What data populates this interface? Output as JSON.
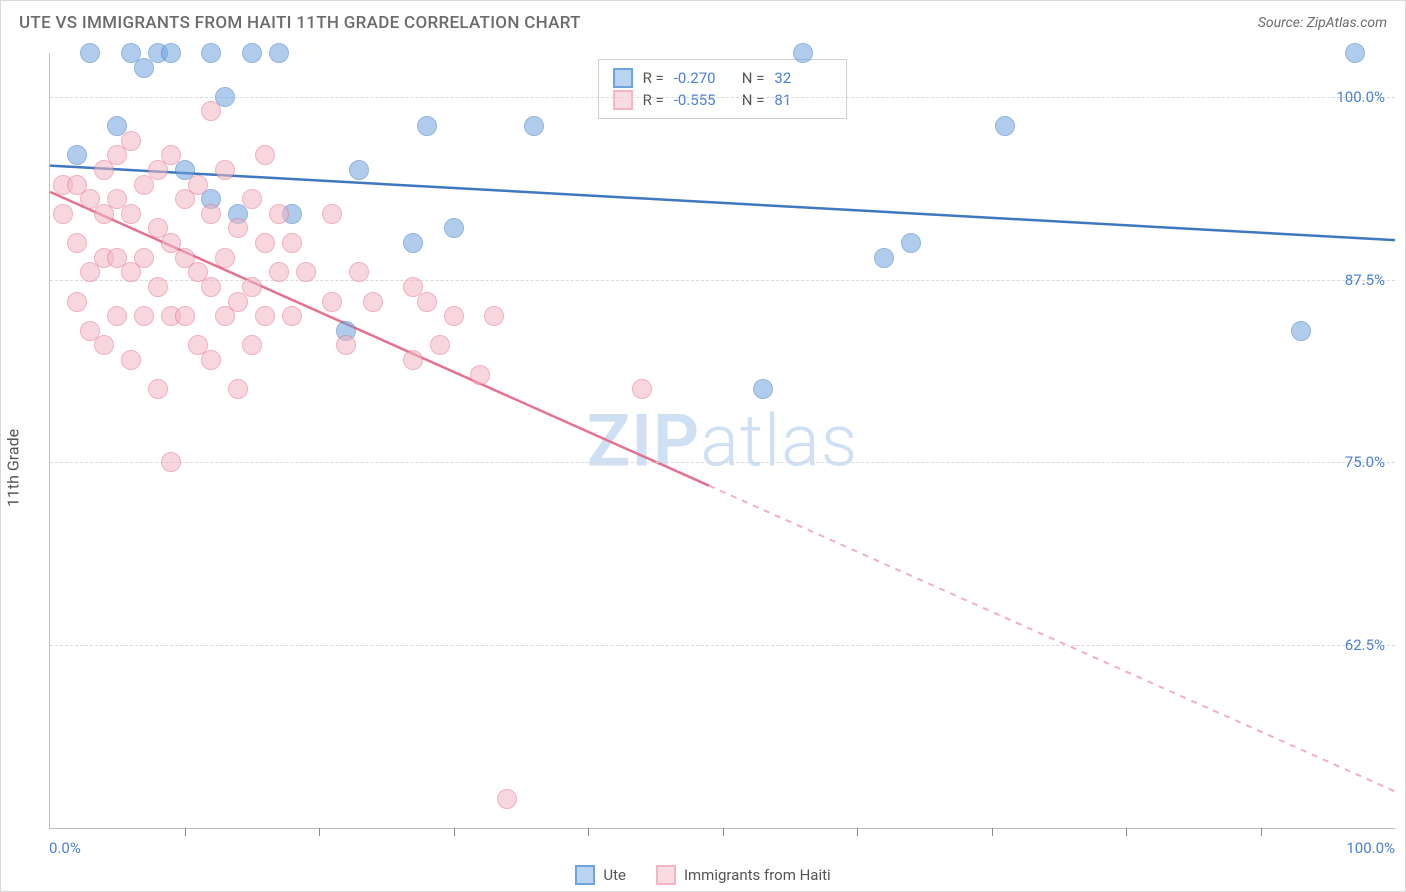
{
  "header": {
    "title": "UTE VS IMMIGRANTS FROM HAITI 11TH GRADE CORRELATION CHART",
    "source": "Source: ZipAtlas.com"
  },
  "chart": {
    "type": "scatter",
    "ylabel": "11th Grade",
    "xlim": [
      0,
      100
    ],
    "ylim": [
      50,
      103
    ],
    "xtick_step": 10,
    "yticks": [
      62.5,
      75.0,
      87.5,
      100.0
    ],
    "ytick_labels": [
      "62.5%",
      "75.0%",
      "87.5%",
      "100.0%"
    ],
    "xlabel_min": "0.0%",
    "xlabel_max": "100.0%",
    "grid_color": "#d9d9d9",
    "background": "#ffffff",
    "watermark": "ZIPatlas",
    "marker_radius": 10,
    "marker_opacity": 0.55,
    "series": [
      {
        "name": "Ute",
        "color": "#6fa3e0",
        "stroke": "#3f78c0",
        "R": "-0.270",
        "N": "32",
        "trend": {
          "x1": 0,
          "y1": 95.3,
          "x2": 100,
          "y2": 90.2,
          "solid_until": 100
        },
        "points": [
          [
            2,
            96
          ],
          [
            3,
            103
          ],
          [
            5,
            98
          ],
          [
            6,
            103
          ],
          [
            7,
            102
          ],
          [
            8,
            103
          ],
          [
            9,
            103
          ],
          [
            10,
            95
          ],
          [
            12,
            93
          ],
          [
            12,
            103
          ],
          [
            13,
            100
          ],
          [
            14,
            92
          ],
          [
            15,
            103
          ],
          [
            17,
            103
          ],
          [
            18,
            92
          ],
          [
            22,
            84
          ],
          [
            23,
            95
          ],
          [
            27,
            90
          ],
          [
            28,
            98
          ],
          [
            30,
            91
          ],
          [
            36,
            98
          ],
          [
            53,
            80
          ],
          [
            56,
            103
          ],
          [
            62,
            89
          ],
          [
            64,
            90
          ],
          [
            71,
            98
          ],
          [
            93,
            84
          ],
          [
            97,
            103
          ]
        ]
      },
      {
        "name": "Immigrants from Haiti",
        "color": "#f2b6c2",
        "stroke": "#e6718f",
        "R": "-0.555",
        "N": "81",
        "trend": {
          "x1": 0,
          "y1": 93.5,
          "x2": 100,
          "y2": 52.5,
          "solid_until": 49
        },
        "points": [
          [
            1,
            94
          ],
          [
            1,
            92
          ],
          [
            2,
            94
          ],
          [
            2,
            90
          ],
          [
            2,
            86
          ],
          [
            3,
            93
          ],
          [
            3,
            88
          ],
          [
            3,
            84
          ],
          [
            4,
            95
          ],
          [
            4,
            92
          ],
          [
            4,
            89
          ],
          [
            4,
            83
          ],
          [
            5,
            96
          ],
          [
            5,
            93
          ],
          [
            5,
            89
          ],
          [
            5,
            85
          ],
          [
            6,
            97
          ],
          [
            6,
            92
          ],
          [
            6,
            88
          ],
          [
            6,
            82
          ],
          [
            7,
            94
          ],
          [
            7,
            89
          ],
          [
            7,
            85
          ],
          [
            8,
            95
          ],
          [
            8,
            91
          ],
          [
            8,
            87
          ],
          [
            8,
            80
          ],
          [
            9,
            96
          ],
          [
            9,
            90
          ],
          [
            9,
            85
          ],
          [
            9,
            75
          ],
          [
            10,
            93
          ],
          [
            10,
            89
          ],
          [
            10,
            85
          ],
          [
            11,
            94
          ],
          [
            11,
            88
          ],
          [
            11,
            83
          ],
          [
            12,
            99
          ],
          [
            12,
            92
          ],
          [
            12,
            87
          ],
          [
            12,
            82
          ],
          [
            13,
            95
          ],
          [
            13,
            89
          ],
          [
            13,
            85
          ],
          [
            14,
            91
          ],
          [
            14,
            86
          ],
          [
            14,
            80
          ],
          [
            15,
            93
          ],
          [
            15,
            87
          ],
          [
            15,
            83
          ],
          [
            16,
            90
          ],
          [
            16,
            85
          ],
          [
            16,
            96
          ],
          [
            17,
            88
          ],
          [
            17,
            92
          ],
          [
            18,
            85
          ],
          [
            18,
            90
          ],
          [
            19,
            88
          ],
          [
            21,
            86
          ],
          [
            21,
            92
          ],
          [
            22,
            83
          ],
          [
            23,
            88
          ],
          [
            24,
            86
          ],
          [
            27,
            82
          ],
          [
            27,
            87
          ],
          [
            28,
            86
          ],
          [
            29,
            83
          ],
          [
            30,
            85
          ],
          [
            32,
            81
          ],
          [
            33,
            85
          ],
          [
            34,
            52
          ],
          [
            44,
            80
          ]
        ]
      }
    ],
    "legend_bottom": [
      {
        "label": "Ute",
        "fill": "#b9d3f0",
        "stroke": "#6fa3e0"
      },
      {
        "label": "Immigrants from Haiti",
        "fill": "#f9dbe2",
        "stroke": "#f2b6c2"
      }
    ],
    "legend_top": [
      {
        "fill": "#b9d3f0",
        "stroke": "#6fa3e0"
      },
      {
        "fill": "#f9dbe2",
        "stroke": "#f2b6c2"
      }
    ]
  }
}
